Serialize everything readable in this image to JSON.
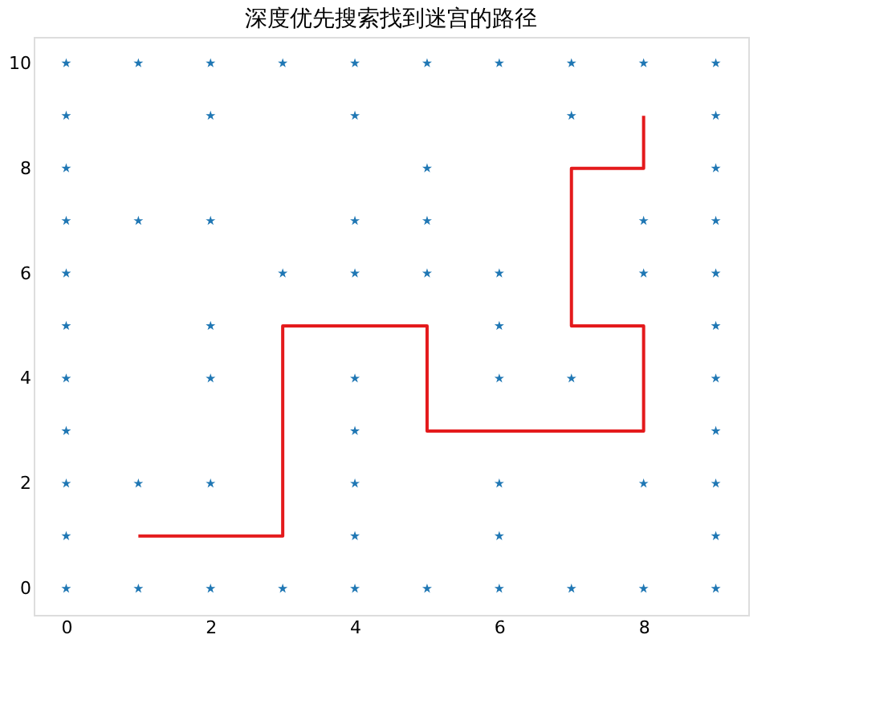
{
  "chart_data": {
    "type": "scatter",
    "title": "深度优先搜索找到迷宫的路径",
    "xlim": [
      -0.45,
      9.45
    ],
    "ylim": [
      -0.5,
      10.5
    ],
    "xticks": [
      0,
      2,
      4,
      6,
      8
    ],
    "yticks": [
      0,
      2,
      4,
      6,
      8,
      10
    ],
    "series": [
      {
        "color": "#1f77b4",
        "marker": "star",
        "x": [
          0,
          1,
          2,
          3,
          4,
          5,
          6,
          7,
          8,
          9,
          0,
          2,
          4,
          7,
          9,
          0,
          5,
          9,
          0,
          1,
          2,
          4,
          5,
          8,
          9,
          0,
          3,
          4,
          5,
          6,
          8,
          9,
          0,
          2,
          6,
          9,
          0,
          2,
          4,
          6,
          7,
          9,
          0,
          4,
          9,
          0,
          1,
          2,
          4,
          6,
          8,
          9,
          0,
          4,
          6,
          9,
          0,
          1,
          2,
          3,
          4,
          5,
          6,
          7,
          8,
          9
        ],
        "values": [
          10,
          10,
          10,
          10,
          10,
          10,
          10,
          10,
          10,
          10,
          9,
          9,
          9,
          9,
          9,
          8,
          8,
          8,
          7,
          7,
          7,
          7,
          7,
          7,
          7,
          6,
          6,
          6,
          6,
          6,
          6,
          6,
          5,
          5,
          5,
          5,
          4,
          4,
          4,
          4,
          4,
          4,
          3,
          3,
          3,
          2,
          2,
          2,
          2,
          2,
          2,
          2,
          1,
          1,
          1,
          1,
          0,
          0,
          0,
          0,
          0,
          0,
          0,
          0,
          0,
          0
        ]
      },
      {
        "type": "line",
        "color": "#e41a1c",
        "marker": "none",
        "line_style": "solid",
        "x": [
          1,
          3,
          3,
          5,
          5,
          8,
          8,
          7,
          7,
          8,
          8
        ],
        "values": [
          1,
          1,
          5,
          5,
          3,
          3,
          5,
          5,
          8,
          8,
          9
        ]
      }
    ]
  }
}
